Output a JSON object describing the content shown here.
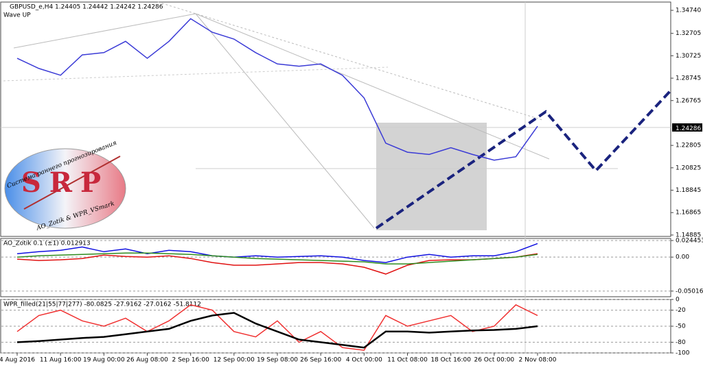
{
  "chart_data": [
    {
      "type": "line",
      "title": "GBPUSD_e,H4  1.24405 1.24442 1.24242 1.24286",
      "subtitle": "Wave UP",
      "categories": [
        "4 Aug 2016",
        null,
        "11 Aug 16:00",
        null,
        "19 Aug 00:00",
        null,
        "26 Aug 08:00",
        null,
        "2 Sep 16:00",
        null,
        "12 Sep 00:00",
        null,
        "19 Sep 08:00",
        null,
        "26 Sep 16:00",
        null,
        "4 Oct 00:00",
        null,
        "11 Oct 08:00",
        null,
        "18 Oct 16:00",
        null,
        "26 Oct 00:00",
        null,
        "2 Nov 08:00"
      ],
      "series": [
        {
          "color": "#3a3ad6",
          "values": [
            1.305,
            1.296,
            1.29,
            1.308,
            1.31,
            1.32,
            1.305,
            1.32,
            1.34,
            1.328,
            1.322,
            1.31,
            1.3,
            1.298,
            1.3,
            1.29,
            1.27,
            1.23,
            1.222,
            1.22,
            1.226,
            1.22,
            1.215,
            1.218,
            1.245
          ]
        }
      ],
      "ylim": [
        1.1476,
        1.3547
      ],
      "yticks": [
        {
          "value": 1.3474,
          "label": "1.34740"
        },
        {
          "value": 1.32705,
          "label": "1.32705"
        },
        {
          "value": 1.30725,
          "label": "1.30725"
        },
        {
          "value": 1.28745,
          "label": "1.28745"
        },
        {
          "value": 1.26765,
          "label": "1.26765"
        },
        {
          "value": 1.22805,
          "label": "1.22805"
        },
        {
          "value": 1.20825,
          "label": "1.20825"
        },
        {
          "value": 1.18845,
          "label": "1.18845"
        },
        {
          "value": 1.16865,
          "label": "1.16865"
        },
        {
          "value": 1.14885,
          "label": "1.14885"
        }
      ],
      "current_price": {
        "value": 1.24286,
        "label": "1.24286"
      },
      "grid": false
    },
    {
      "type": "line",
      "title": "AO_Zotik 0.1 (±1) 0.012913",
      "series": [
        {
          "color": "#1010e0",
          "values": [
            0.005,
            0.008,
            0.01,
            0.015,
            0.008,
            0.012,
            0.005,
            0.01,
            0.008,
            0.002,
            0.0,
            0.002,
            0.0,
            0.001,
            0.002,
            0.0,
            -0.005,
            -0.008,
            0.0,
            0.004,
            0.0,
            0.002,
            0.002,
            0.008,
            0.02
          ]
        },
        {
          "color": "#e01010",
          "values": [
            -0.003,
            -0.005,
            -0.004,
            -0.002,
            0.003,
            0.001,
            0.0,
            0.002,
            -0.002,
            -0.008,
            -0.012,
            -0.012,
            -0.01,
            -0.008,
            -0.008,
            -0.01,
            -0.015,
            -0.025,
            -0.012,
            -0.005,
            -0.004,
            -0.004,
            -0.002,
            0.0,
            0.005
          ]
        },
        {
          "color": "#2e8b1e",
          "values": [
            0.0,
            0.002,
            0.003,
            0.004,
            0.005,
            0.006,
            0.006,
            0.005,
            0.004,
            0.002,
            0.0,
            -0.002,
            -0.003,
            -0.004,
            -0.005,
            -0.006,
            -0.007,
            -0.01,
            -0.01,
            -0.008,
            -0.006,
            -0.004,
            -0.002,
            0.0,
            0.004
          ]
        }
      ],
      "ylim": [
        -0.0585,
        0.0275
      ],
      "yticks": [
        0.024453,
        {
          "value": 0,
          "label": "0.00"
        },
        -0.050165
      ],
      "grid": true
    },
    {
      "type": "line",
      "title": "WPR_filled(21|55|77|277) -80.0825 -27.9162 -27.0162 -51.8112",
      "series": [
        {
          "color": "#f03030",
          "values": [
            -60,
            -30,
            -20,
            -40,
            -50,
            -35,
            -60,
            -40,
            -10,
            -20,
            -60,
            -70,
            -40,
            -80,
            -60,
            -90,
            -95,
            -30,
            -50,
            -40,
            -30,
            -60,
            -50,
            -10,
            -30
          ]
        },
        {
          "color": "#000000",
          "values": [
            -80,
            -78,
            -75,
            -72,
            -70,
            -65,
            -60,
            -55,
            -40,
            -30,
            -25,
            -45,
            -60,
            -75,
            -80,
            -85,
            -90,
            -60,
            -60,
            -62,
            -60,
            -58,
            -57,
            -55,
            -50
          ]
        }
      ],
      "ylim": [
        -100,
        0
      ],
      "yticks": [
        0,
        -20,
        -50,
        -80,
        -100
      ],
      "grid": true
    }
  ],
  "logo": {
    "mark": "SRP",
    "arc_text": "Система раннего прогнозирования",
    "footer": "AO_Zotik & WPR_VSmark"
  }
}
